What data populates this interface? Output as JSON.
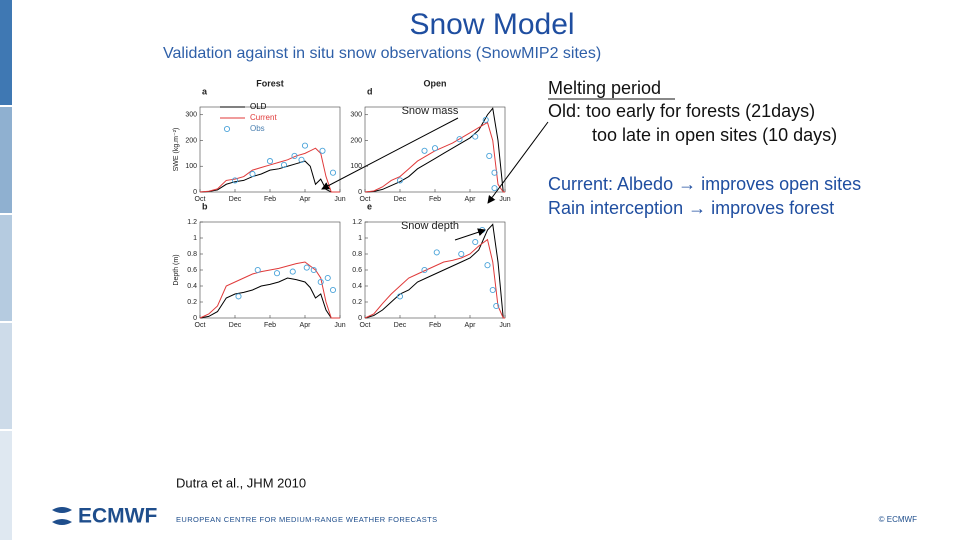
{
  "slide": {
    "title": "Snow Model",
    "subtitle": "Validation against in situ snow observations (SnowMIP2 sites)"
  },
  "chart_data": [
    {
      "type": "line",
      "label": "a",
      "title": "Forest",
      "ylabel": "SWE (kg.m⁻²)",
      "xlim": [
        0,
        8
      ],
      "xticks": [
        {
          "value": 0,
          "label": "Oct"
        },
        {
          "value": 2,
          "label": "Dec"
        },
        {
          "value": 4,
          "label": "Feb"
        },
        {
          "value": 6,
          "label": "Apr"
        },
        {
          "value": 8,
          "label": "Jun"
        }
      ],
      "ylim": [
        0,
        330
      ],
      "yticks": [
        0,
        100,
        200,
        300
      ],
      "series": [
        {
          "name": "OLD",
          "color": "#000000",
          "mode": "line",
          "x": [
            0,
            0.5,
            1,
            1.5,
            2,
            2.5,
            3,
            3.5,
            4,
            4.5,
            5,
            5.5,
            6,
            6.3,
            6.6,
            6.9,
            7.2,
            7.5,
            8
          ],
          "values": [
            0,
            2,
            8,
            30,
            40,
            45,
            60,
            70,
            85,
            90,
            100,
            110,
            120,
            100,
            30,
            50,
            10,
            0,
            0
          ]
        },
        {
          "name": "Current",
          "color": "#e03a3a",
          "mode": "line",
          "x": [
            0,
            0.5,
            1,
            1.5,
            2,
            2.5,
            3,
            3.5,
            4,
            4.5,
            5,
            5.5,
            6,
            6.3,
            6.6,
            6.9,
            7.2,
            7.5,
            8
          ],
          "values": [
            0,
            3,
            12,
            45,
            50,
            60,
            85,
            95,
            105,
            115,
            125,
            140,
            150,
            160,
            170,
            150,
            60,
            0,
            0
          ]
        },
        {
          "name": "Obs",
          "color": "#4aa3d9",
          "mode": "markers",
          "x": [
            2,
            3,
            4,
            4.8,
            5.4,
            5.8,
            6,
            7,
            7.6
          ],
          "values": [
            45,
            70,
            120,
            105,
            140,
            125,
            180,
            160,
            75
          ]
        }
      ]
    },
    {
      "type": "line",
      "label": "d",
      "title": "Open",
      "annotation": "Snow mass",
      "xlim": [
        0,
        8
      ],
      "xticks": [
        {
          "value": 0,
          "label": "Oct"
        },
        {
          "value": 2,
          "label": "Dec"
        },
        {
          "value": 4,
          "label": "Feb"
        },
        {
          "value": 6,
          "label": "Apr"
        },
        {
          "value": 8,
          "label": "Jun"
        }
      ],
      "ylim": [
        0,
        330
      ],
      "yticks": [
        0,
        100,
        200,
        300
      ],
      "series": [
        {
          "color": "#000000",
          "mode": "line",
          "x": [
            0,
            0.5,
            1,
            1.5,
            2,
            2.5,
            3,
            3.5,
            4,
            4.5,
            5,
            5.5,
            6,
            6.5,
            7,
            7.3,
            7.6,
            7.9,
            8
          ],
          "values": [
            0,
            2,
            10,
            25,
            40,
            60,
            90,
            110,
            130,
            150,
            170,
            190,
            210,
            240,
            300,
            325,
            200,
            0,
            0
          ]
        },
        {
          "color": "#e03a3a",
          "mode": "line",
          "x": [
            0,
            0.5,
            1,
            1.5,
            2,
            2.5,
            3,
            3.5,
            4,
            4.5,
            5,
            5.5,
            6,
            6.5,
            7,
            7.3,
            7.6,
            7.9,
            8
          ],
          "values": [
            0,
            4,
            20,
            45,
            60,
            90,
            120,
            140,
            160,
            175,
            190,
            210,
            230,
            250,
            270,
            200,
            30,
            0,
            0
          ]
        },
        {
          "color": "#4aa3d9",
          "mode": "markers",
          "x": [
            2,
            3.4,
            4,
            5.4,
            6.3,
            6.9,
            7.1,
            7.4,
            7.4
          ],
          "values": [
            45,
            160,
            170,
            205,
            215,
            280,
            140,
            75,
            15
          ]
        }
      ]
    },
    {
      "type": "line",
      "label": "b",
      "ylabel": "Depth (m)",
      "xlim": [
        0,
        8
      ],
      "xticks": [
        {
          "value": 0,
          "label": "Oct"
        },
        {
          "value": 2,
          "label": "Dec"
        },
        {
          "value": 4,
          "label": "Feb"
        },
        {
          "value": 6,
          "label": "Apr"
        },
        {
          "value": 8,
          "label": "Jun"
        }
      ],
      "ylim": [
        0,
        1.2
      ],
      "yticks": [
        0,
        0.2,
        0.4,
        0.6,
        0.8,
        1,
        1.2
      ],
      "series": [
        {
          "color": "#000000",
          "mode": "line",
          "x": [
            0,
            0.5,
            1,
            1.5,
            2,
            2.5,
            3,
            3.5,
            4,
            4.5,
            5,
            5.5,
            6,
            6.3,
            6.6,
            6.9,
            7.2,
            7.5,
            8
          ],
          "values": [
            0,
            0.02,
            0.08,
            0.25,
            0.3,
            0.32,
            0.35,
            0.4,
            0.42,
            0.45,
            0.5,
            0.48,
            0.45,
            0.38,
            0.25,
            0.3,
            0.1,
            0,
            0
          ]
        },
        {
          "color": "#e03a3a",
          "mode": "line",
          "x": [
            0,
            0.5,
            1,
            1.5,
            2,
            2.5,
            3,
            3.5,
            4,
            4.5,
            5,
            5.5,
            6,
            6.3,
            6.6,
            6.9,
            7.2,
            7.5,
            8
          ],
          "values": [
            0,
            0.05,
            0.15,
            0.4,
            0.45,
            0.5,
            0.55,
            0.58,
            0.6,
            0.62,
            0.65,
            0.68,
            0.7,
            0.65,
            0.6,
            0.5,
            0.2,
            0,
            0
          ]
        },
        {
          "color": "#4aa3d9",
          "mode": "markers",
          "x": [
            2.2,
            3.3,
            4.4,
            5.3,
            6.1,
            6.5,
            6.9,
            7.3,
            7.6
          ],
          "values": [
            0.27,
            0.6,
            0.56,
            0.58,
            0.63,
            0.6,
            0.45,
            0.5,
            0.35
          ]
        }
      ]
    },
    {
      "type": "line",
      "label": "e",
      "annotation": "Snow depth",
      "xlim": [
        0,
        8
      ],
      "xticks": [
        {
          "value": 0,
          "label": "Oct"
        },
        {
          "value": 2,
          "label": "Dec"
        },
        {
          "value": 4,
          "label": "Feb"
        },
        {
          "value": 6,
          "label": "Apr"
        },
        {
          "value": 8,
          "label": "Jun"
        }
      ],
      "ylim": [
        0,
        1.2
      ],
      "yticks": [
        0,
        0.2,
        0.4,
        0.6,
        0.8,
        1,
        1.2
      ],
      "series": [
        {
          "color": "#000000",
          "mode": "line",
          "x": [
            0,
            0.5,
            1,
            1.5,
            2,
            2.5,
            3,
            3.5,
            4,
            4.5,
            5,
            5.5,
            6,
            6.5,
            7,
            7.3,
            7.6,
            7.9,
            8
          ],
          "values": [
            0,
            0.03,
            0.1,
            0.2,
            0.3,
            0.35,
            0.45,
            0.5,
            0.55,
            0.6,
            0.65,
            0.7,
            0.75,
            0.85,
            1.1,
            1.17,
            0.7,
            0,
            0
          ]
        },
        {
          "color": "#e03a3a",
          "mode": "line",
          "x": [
            0,
            0.5,
            1,
            1.5,
            2,
            2.5,
            3,
            3.5,
            4,
            4.5,
            5,
            5.5,
            6,
            6.5,
            7,
            7.3,
            7.6,
            7.9,
            8
          ],
          "values": [
            0,
            0.05,
            0.18,
            0.3,
            0.4,
            0.5,
            0.55,
            0.6,
            0.65,
            0.7,
            0.72,
            0.75,
            0.8,
            0.9,
            0.98,
            0.7,
            0.15,
            0,
            0
          ]
        },
        {
          "color": "#4aa3d9",
          "mode": "markers",
          "x": [
            2,
            3.4,
            4.1,
            5.5,
            6.3,
            6.7,
            7,
            7.3,
            7.5
          ],
          "values": [
            0.27,
            0.6,
            0.82,
            0.8,
            0.95,
            1.1,
            0.66,
            0.35,
            0.15
          ]
        }
      ]
    }
  ],
  "notes": {
    "heading": "Melting period",
    "lines": [
      "Old: too early for forests (21days)",
      "too late in open sites (10 days)",
      "Current: Albedo → improves open sites",
      "Rain interception → improves forest"
    ]
  },
  "reference": "Dutra et al., JHM 2010",
  "footer": {
    "logo": "ECMWF",
    "organisation": "EUROPEAN CENTRE FOR MEDIUM-RANGE WEATHER FORECASTS",
    "copyright": "© ECMWF"
  }
}
